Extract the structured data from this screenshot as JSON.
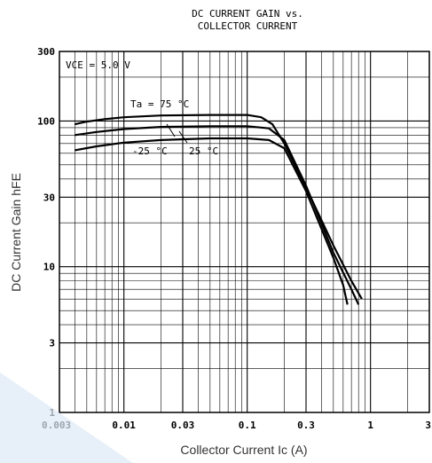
{
  "chart_data": {
    "type": "line",
    "title_line1": "DC CURRENT GAIN vs.",
    "title_line2": "COLLECTOR CURRENT",
    "xlabel": "Collector Current  Ic (A)",
    "ylabel": "DC Current Gain  hFE",
    "xscale": "log",
    "yscale": "log",
    "xlim": [
      0.003,
      3
    ],
    "ylim": [
      1,
      300
    ],
    "xticks": [
      {
        "v": 0.003,
        "label": "0.003"
      },
      {
        "v": 0.01,
        "label": "0.01"
      },
      {
        "v": 0.03,
        "label": "0.03"
      },
      {
        "v": 0.1,
        "label": "0.1"
      },
      {
        "v": 0.3,
        "label": "0.3"
      },
      {
        "v": 1,
        "label": "1"
      },
      {
        "v": 3,
        "label": "3"
      }
    ],
    "yticks": [
      {
        "v": 1,
        "label": "1"
      },
      {
        "v": 3,
        "label": "3"
      },
      {
        "v": 10,
        "label": "10"
      },
      {
        "v": 30,
        "label": "30"
      },
      {
        "v": 100,
        "label": "100"
      },
      {
        "v": 300,
        "label": "300"
      }
    ],
    "grid": true,
    "condition": "VCE = 5.0 V",
    "series": [
      {
        "name": "Ta = 75 °C",
        "points": [
          [
            0.004,
            95
          ],
          [
            0.005,
            99
          ],
          [
            0.007,
            103
          ],
          [
            0.01,
            106
          ],
          [
            0.02,
            109
          ],
          [
            0.05,
            110
          ],
          [
            0.1,
            110
          ],
          [
            0.13,
            106
          ],
          [
            0.16,
            95
          ],
          [
            0.2,
            70
          ],
          [
            0.3,
            35
          ],
          [
            0.5,
            14
          ],
          [
            0.7,
            8
          ],
          [
            0.85,
            6
          ]
        ]
      },
      {
        "name": "25 °C",
        "points": [
          [
            0.004,
            80
          ],
          [
            0.006,
            84
          ],
          [
            0.01,
            88
          ],
          [
            0.02,
            91
          ],
          [
            0.05,
            92
          ],
          [
            0.1,
            92
          ],
          [
            0.15,
            89
          ],
          [
            0.2,
            74
          ],
          [
            0.3,
            36
          ],
          [
            0.5,
            12.5
          ],
          [
            0.7,
            7
          ],
          [
            0.8,
            5.5
          ]
        ]
      },
      {
        "name": "-25 °C",
        "points": [
          [
            0.004,
            63
          ],
          [
            0.006,
            67
          ],
          [
            0.01,
            71
          ],
          [
            0.02,
            74
          ],
          [
            0.05,
            76
          ],
          [
            0.1,
            76
          ],
          [
            0.15,
            74
          ],
          [
            0.2,
            65
          ],
          [
            0.3,
            33
          ],
          [
            0.5,
            11.5
          ],
          [
            0.6,
            7.5
          ],
          [
            0.65,
            5.5
          ]
        ]
      }
    ],
    "annotations": [
      {
        "text": "VCE = 5.0 V"
      },
      {
        "text": "Ta = 75 °C"
      },
      {
        "text": "-25 °C"
      },
      {
        "text": "25 °C"
      }
    ]
  }
}
